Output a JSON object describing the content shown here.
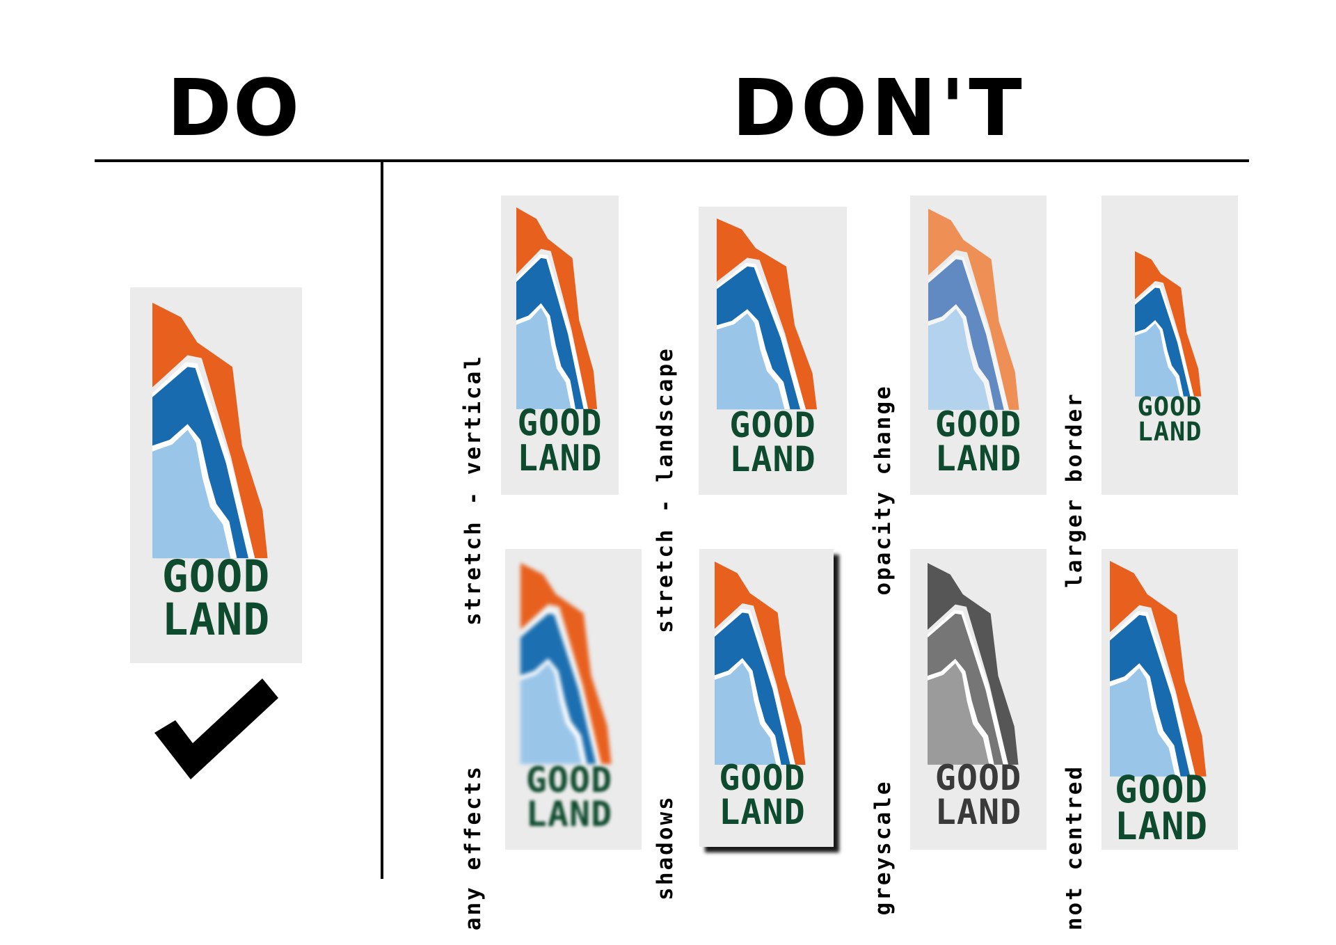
{
  "headings": {
    "do": "DO",
    "dont": "DON'T"
  },
  "logo": {
    "line1": "GOOD",
    "line2": "LAND"
  },
  "colors": {
    "orange": "#e8601e",
    "blue": "#196baf",
    "light_blue": "#99c5e9",
    "green": "#0e4a2e",
    "card_bg": "#ebebeb",
    "faded_orange": "#ee9056",
    "faded_blue": "#608ac1",
    "faded_light_blue": "#b2d2ee",
    "grey_dark": "#565656",
    "grey_mid": "#767676",
    "grey_light": "#9b9b9b",
    "grey_text": "#3a3a3a"
  },
  "do_icon": "checkmark-icon",
  "donts": [
    {
      "caption": "stretch - vertical"
    },
    {
      "caption": "stretch - landscape"
    },
    {
      "caption": "opacity change"
    },
    {
      "caption": "larger border"
    },
    {
      "caption": "any effects"
    },
    {
      "caption": "shadows"
    },
    {
      "caption": "greyscale"
    },
    {
      "caption": "not centred"
    }
  ]
}
